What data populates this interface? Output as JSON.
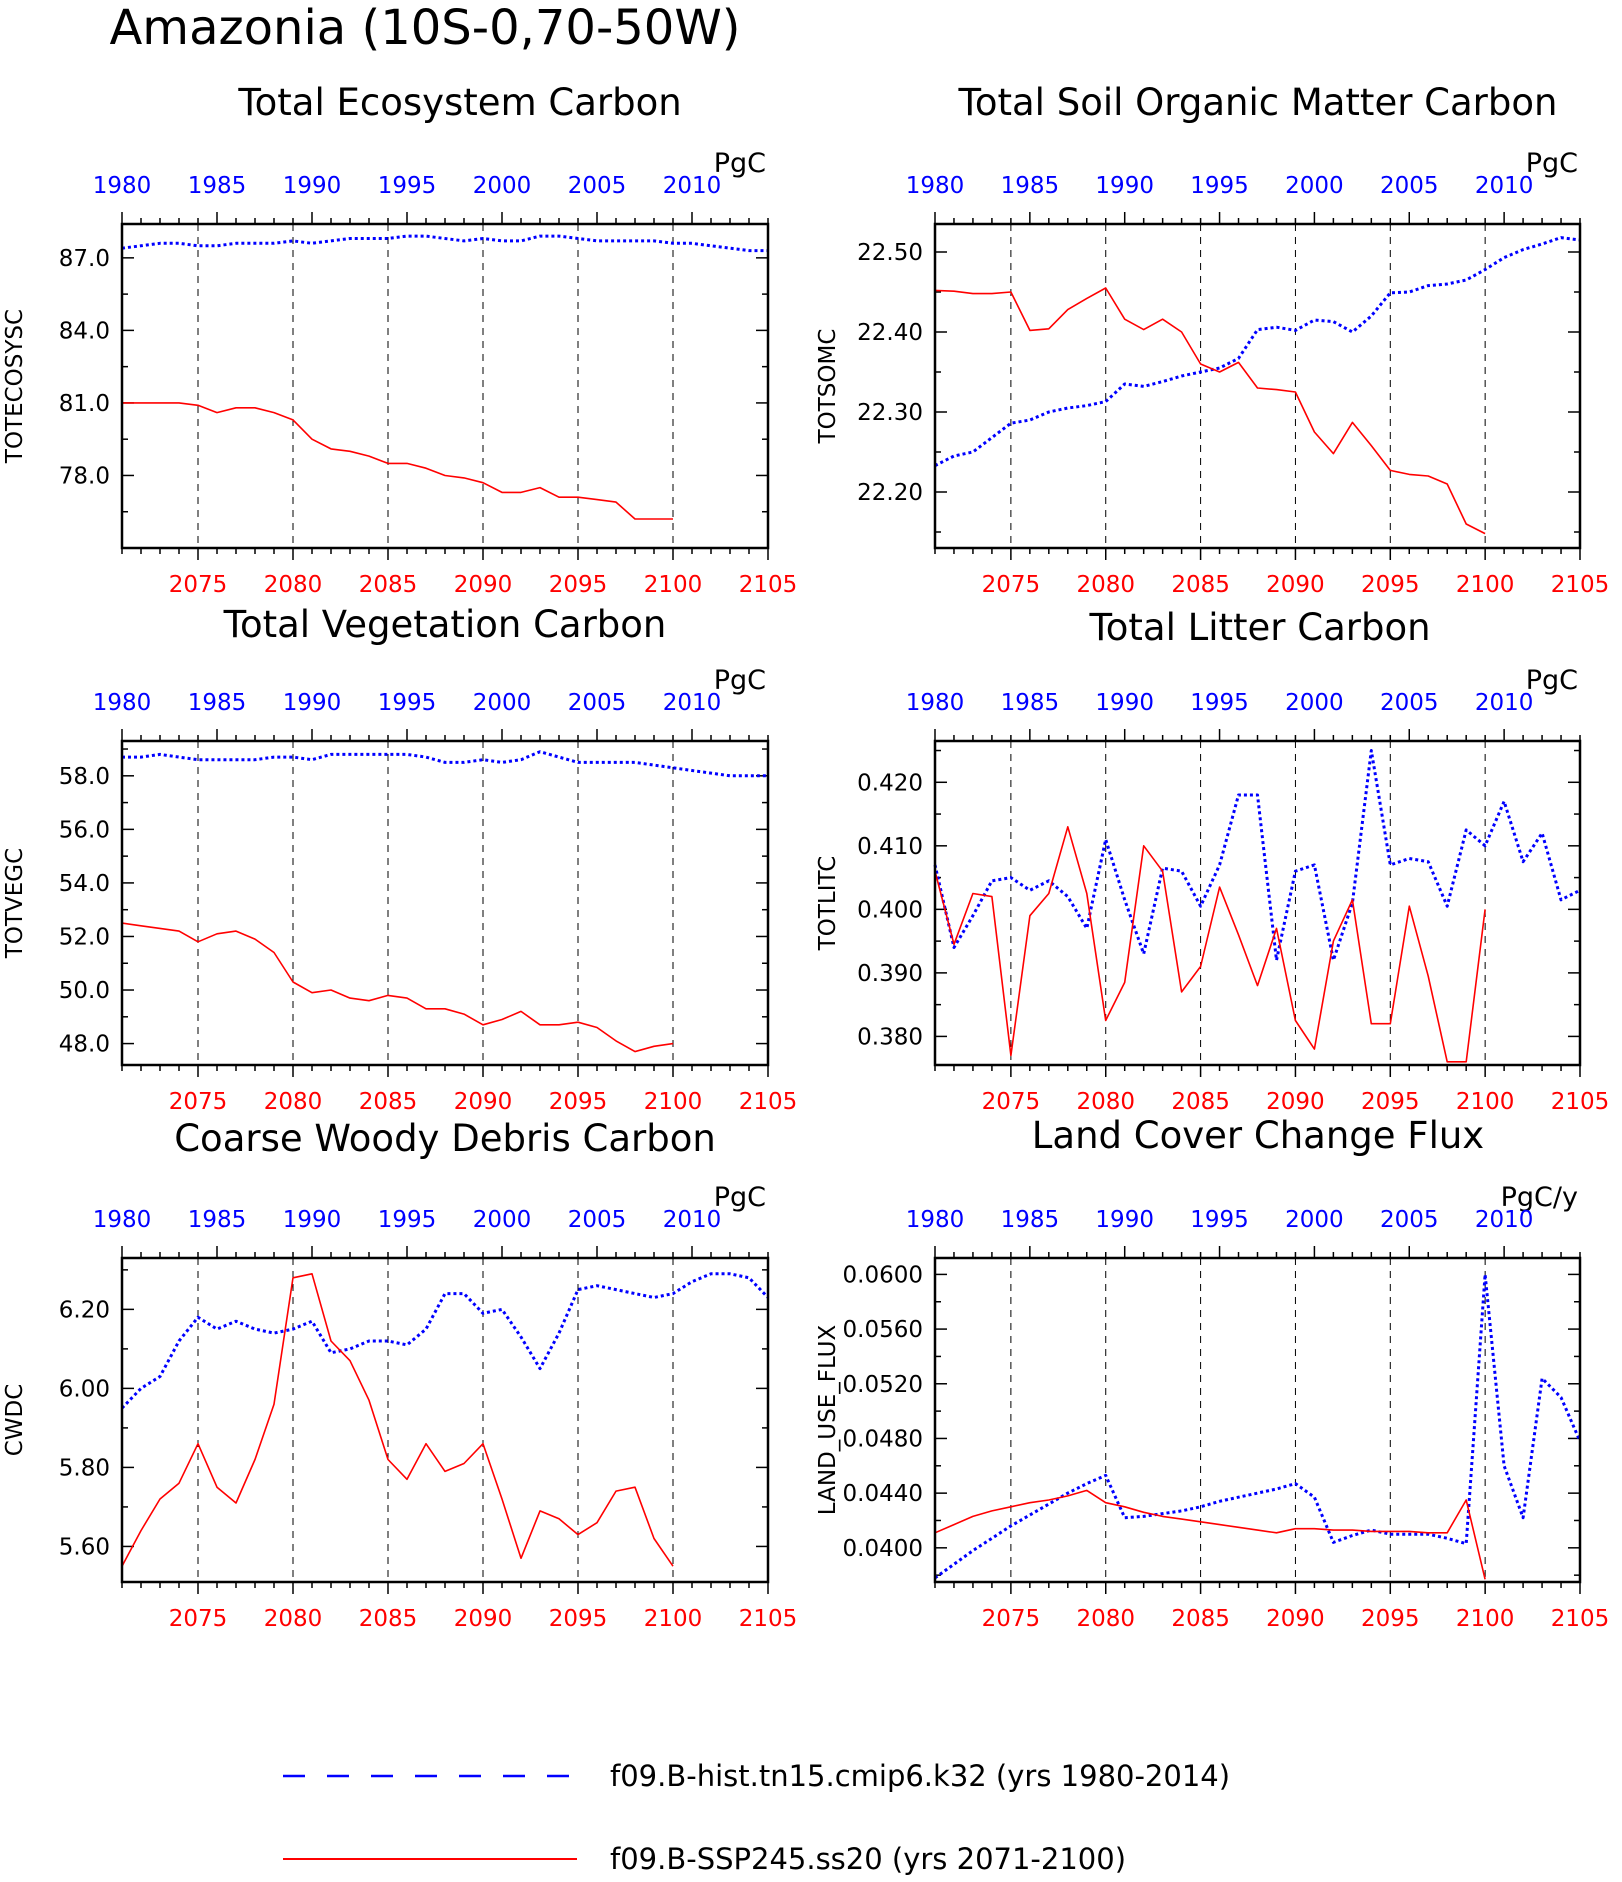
{
  "page": {
    "title": "Amazonia (10S-0,70-50W)",
    "colors": {
      "hist": "#0000ff",
      "ssp": "#ff0000",
      "axis": "#000000"
    }
  },
  "legend": {
    "hist_label": "f09.B-hist.tn15.cmip6.k32 (yrs 1980-2014)",
    "ssp_label": "f09.B-SSP245.ss20 (yrs 2071-2100)"
  },
  "chart_data": [
    {
      "type": "line",
      "title": "Total Ecosystem Carbon",
      "ylabel": "TOTECOSYSC",
      "units": "PgC",
      "ylim": [
        75.0,
        88.4
      ],
      "yticks": [
        78.0,
        81.0,
        84.0,
        87.0
      ],
      "ydec": 1,
      "x_bottom": {
        "range": [
          2071,
          2105
        ],
        "ticks": [
          2075,
          2080,
          2085,
          2090,
          2095,
          2100,
          2105
        ]
      },
      "x_top": {
        "range": [
          1980,
          2014
        ],
        "ticks": [
          1980,
          1985,
          1990,
          1995,
          2000,
          2005,
          2010
        ]
      },
      "series": [
        {
          "name": "f09.B-hist.tn15.cmip6.k32 (yrs 1980-2014)",
          "style": "dotted",
          "values": [
            87.4,
            87.5,
            87.6,
            87.6,
            87.5,
            87.5,
            87.6,
            87.6,
            87.6,
            87.7,
            87.6,
            87.7,
            87.8,
            87.8,
            87.8,
            87.9,
            87.9,
            87.8,
            87.7,
            87.8,
            87.7,
            87.7,
            87.9,
            87.9,
            87.8,
            87.7,
            87.7,
            87.7,
            87.7,
            87.6,
            87.6,
            87.5,
            87.4,
            87.3,
            87.3
          ]
        },
        {
          "name": "f09.B-SSP245.ss20 (yrs 2071-2100)",
          "style": "solid",
          "values": [
            81.0,
            81.0,
            81.0,
            81.0,
            80.9,
            80.6,
            80.8,
            80.8,
            80.6,
            80.3,
            79.5,
            79.1,
            79.0,
            78.8,
            78.5,
            78.5,
            78.3,
            78.0,
            77.9,
            77.7,
            77.3,
            77.3,
            77.5,
            77.1,
            77.1,
            77.0,
            76.9,
            76.2,
            76.2,
            76.2
          ]
        }
      ]
    },
    {
      "type": "line",
      "title": "Total Soil Organic Matter Carbon",
      "ylabel": "TOTSOMC",
      "units": "PgC",
      "ylim": [
        22.13,
        22.535
      ],
      "yticks": [
        22.2,
        22.3,
        22.4,
        22.5
      ],
      "ydec": 2,
      "x_bottom": {
        "range": [
          2071,
          2105
        ],
        "ticks": [
          2075,
          2080,
          2085,
          2090,
          2095,
          2100,
          2105
        ]
      },
      "x_top": {
        "range": [
          1980,
          2014
        ],
        "ticks": [
          1980,
          1985,
          1990,
          1995,
          2000,
          2005,
          2010
        ]
      },
      "series": [
        {
          "name": "f09.B-hist.tn15.cmip6.k32 (yrs 1980-2014)",
          "style": "dotted",
          "values": [
            22.233,
            22.245,
            22.25,
            22.268,
            22.286,
            22.29,
            22.3,
            22.305,
            22.308,
            22.313,
            22.335,
            22.332,
            22.338,
            22.345,
            22.35,
            22.355,
            22.367,
            22.403,
            22.406,
            22.402,
            22.415,
            22.413,
            22.4,
            22.42,
            22.449,
            22.45,
            22.458,
            22.46,
            22.465,
            22.478,
            22.493,
            22.503,
            22.51,
            22.518,
            22.515
          ]
        },
        {
          "name": "f09.B-SSP245.ss20 (yrs 2071-2100)",
          "style": "solid",
          "values": [
            22.452,
            22.451,
            22.448,
            22.448,
            22.45,
            22.402,
            22.404,
            22.428,
            22.442,
            22.455,
            22.416,
            22.403,
            22.416,
            22.4,
            22.36,
            22.35,
            22.362,
            22.33,
            22.328,
            22.325,
            22.275,
            22.248,
            22.287,
            22.258,
            22.227,
            22.222,
            22.22,
            22.21,
            22.16,
            22.148
          ]
        }
      ]
    },
    {
      "type": "line",
      "title": "Total Vegetation Carbon",
      "ylabel": "TOTVEGC",
      "units": "PgC",
      "ylim": [
        47.2,
        59.3
      ],
      "yticks": [
        48.0,
        50.0,
        52.0,
        54.0,
        56.0,
        58.0
      ],
      "ydec": 1,
      "x_bottom": {
        "range": [
          2071,
          2105
        ],
        "ticks": [
          2075,
          2080,
          2085,
          2090,
          2095,
          2100,
          2105
        ]
      },
      "x_top": {
        "range": [
          1980,
          2014
        ],
        "ticks": [
          1980,
          1985,
          1990,
          1995,
          2000,
          2005,
          2010
        ]
      },
      "series": [
        {
          "name": "f09.B-hist.tn15.cmip6.k32 (yrs 1980-2014)",
          "style": "dotted",
          "values": [
            58.7,
            58.7,
            58.8,
            58.7,
            58.6,
            58.6,
            58.6,
            58.6,
            58.7,
            58.7,
            58.6,
            58.8,
            58.8,
            58.8,
            58.8,
            58.8,
            58.7,
            58.5,
            58.5,
            58.6,
            58.5,
            58.6,
            58.9,
            58.7,
            58.5,
            58.5,
            58.5,
            58.5,
            58.4,
            58.3,
            58.2,
            58.1,
            58.0,
            58.0,
            58.0
          ]
        },
        {
          "name": "f09.B-SSP245.ss20 (yrs 2071-2100)",
          "style": "solid",
          "values": [
            52.5,
            52.4,
            52.3,
            52.2,
            51.8,
            52.1,
            52.2,
            51.9,
            51.4,
            50.3,
            49.9,
            50.0,
            49.7,
            49.6,
            49.8,
            49.7,
            49.3,
            49.3,
            49.1,
            48.7,
            48.9,
            49.2,
            48.7,
            48.7,
            48.8,
            48.6,
            48.1,
            47.7,
            47.9,
            48.0
          ]
        }
      ]
    },
    {
      "type": "line",
      "title": "Total Litter Carbon",
      "ylabel": "TOTLITC",
      "units": "PgC",
      "ylim": [
        0.3755,
        0.4265
      ],
      "yticks": [
        0.38,
        0.39,
        0.4,
        0.41,
        0.42
      ],
      "ydec": 3,
      "x_bottom": {
        "range": [
          2071,
          2105
        ],
        "ticks": [
          2075,
          2080,
          2085,
          2090,
          2095,
          2100,
          2105
        ]
      },
      "x_top": {
        "range": [
          1980,
          2014
        ],
        "ticks": [
          1980,
          1985,
          1990,
          1995,
          2000,
          2005,
          2010
        ]
      },
      "series": [
        {
          "name": "f09.B-hist.tn15.cmip6.k32 (yrs 1980-2014)",
          "style": "dotted",
          "values": [
            0.407,
            0.394,
            0.399,
            0.4045,
            0.405,
            0.403,
            0.4045,
            0.402,
            0.397,
            0.411,
            0.4015,
            0.393,
            0.4065,
            0.406,
            0.4005,
            0.407,
            0.418,
            0.418,
            0.392,
            0.406,
            0.407,
            0.392,
            0.401,
            0.425,
            0.407,
            0.408,
            0.4075,
            0.4005,
            0.4125,
            0.41,
            0.417,
            0.4075,
            0.412,
            0.4015,
            0.403
          ]
        },
        {
          "name": "f09.B-SSP245.ss20 (yrs 2071-2100)",
          "style": "solid",
          "values": [
            0.406,
            0.3945,
            0.4025,
            0.402,
            0.377,
            0.399,
            0.4025,
            0.413,
            0.4025,
            0.3825,
            0.3885,
            0.41,
            0.406,
            0.387,
            0.391,
            0.4035,
            0.396,
            0.388,
            0.397,
            0.3825,
            0.378,
            0.395,
            0.4015,
            0.382,
            0.382,
            0.4005,
            0.3895,
            0.376,
            0.376,
            0.4
          ]
        }
      ]
    },
    {
      "type": "line",
      "title": "Coarse Woody Debris Carbon",
      "ylabel": "CWDC",
      "units": "PgC",
      "ylim": [
        5.51,
        6.33
      ],
      "yticks": [
        5.6,
        5.8,
        6.0,
        6.2
      ],
      "ydec": 2,
      "x_bottom": {
        "range": [
          2071,
          2105
        ],
        "ticks": [
          2075,
          2080,
          2085,
          2090,
          2095,
          2100,
          2105
        ]
      },
      "x_top": {
        "range": [
          1980,
          2014
        ],
        "ticks": [
          1980,
          1985,
          1990,
          1995,
          2000,
          2005,
          2010
        ]
      },
      "series": [
        {
          "name": "f09.B-hist.tn15.cmip6.k32 (yrs 1980-2014)",
          "style": "dotted",
          "values": [
            5.95,
            6.0,
            6.03,
            6.12,
            6.18,
            6.15,
            6.17,
            6.15,
            6.14,
            6.15,
            6.17,
            6.09,
            6.1,
            6.12,
            6.12,
            6.11,
            6.15,
            6.24,
            6.24,
            6.19,
            6.2,
            6.13,
            6.05,
            6.14,
            6.25,
            6.26,
            6.25,
            6.24,
            6.23,
            6.24,
            6.27,
            6.29,
            6.29,
            6.28,
            6.23
          ]
        },
        {
          "name": "f09.B-SSP245.ss20 (yrs 2071-2100)",
          "style": "solid",
          "values": [
            5.55,
            5.64,
            5.72,
            5.76,
            5.86,
            5.75,
            5.71,
            5.82,
            5.96,
            6.28,
            6.29,
            6.12,
            6.07,
            5.97,
            5.82,
            5.77,
            5.86,
            5.79,
            5.81,
            5.86,
            5.72,
            5.57,
            5.69,
            5.67,
            5.63,
            5.66,
            5.74,
            5.75,
            5.62,
            5.55
          ]
        }
      ]
    },
    {
      "type": "line",
      "title": "Land Cover Change Flux",
      "ylabel": "LAND_USE_FLUX",
      "units": "PgC/y",
      "ylim": [
        0.0375,
        0.0612
      ],
      "yticks": [
        0.04,
        0.044,
        0.048,
        0.052,
        0.056,
        0.06
      ],
      "ydec": 4,
      "x_bottom": {
        "range": [
          2071,
          2105
        ],
        "ticks": [
          2075,
          2080,
          2085,
          2090,
          2095,
          2100,
          2105
        ]
      },
      "x_top": {
        "range": [
          1980,
          2014
        ],
        "ticks": [
          1980,
          1985,
          1990,
          1995,
          2000,
          2005,
          2010
        ]
      },
      "series": [
        {
          "name": "f09.B-hist.tn15.cmip6.k32 (yrs 1980-2014)",
          "style": "dotted",
          "values": [
            0.0378,
            0.0388,
            0.0398,
            0.0407,
            0.0416,
            0.0424,
            0.0432,
            0.044,
            0.0447,
            0.0453,
            0.0422,
            0.0423,
            0.0425,
            0.0427,
            0.043,
            0.0434,
            0.0437,
            0.044,
            0.0443,
            0.0447,
            0.0437,
            0.0404,
            0.0409,
            0.0413,
            0.041,
            0.041,
            0.041,
            0.0407,
            0.0403,
            0.06,
            0.046,
            0.0422,
            0.0524,
            0.051,
            0.0478
          ]
        },
        {
          "name": "f09.B-SSP245.ss20 (yrs 2071-2100)",
          "style": "solid",
          "values": [
            0.0411,
            0.0417,
            0.0423,
            0.0427,
            0.043,
            0.0433,
            0.0435,
            0.0438,
            0.0442,
            0.0433,
            0.043,
            0.0426,
            0.0423,
            0.0421,
            0.0419,
            0.0417,
            0.0415,
            0.0413,
            0.0411,
            0.0414,
            0.0414,
            0.0413,
            0.0413,
            0.0412,
            0.0412,
            0.0412,
            0.0411,
            0.0411,
            0.0435,
            0.0377
          ]
        }
      ]
    }
  ]
}
